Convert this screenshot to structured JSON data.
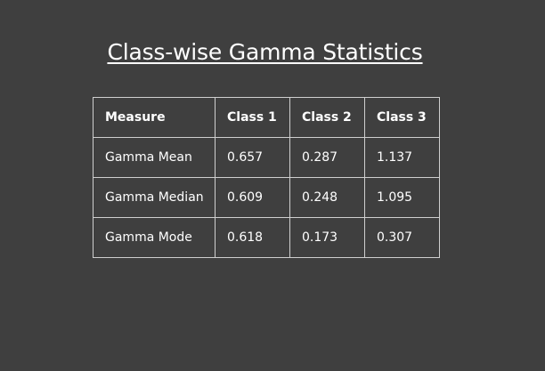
{
  "title": "Class-wise Gamma Statistics",
  "table": {
    "headers": [
      "Measure",
      "Class 1",
      "Class 2",
      "Class 3"
    ],
    "rows": [
      [
        "Gamma Mean",
        "0.657",
        "0.287",
        "1.137"
      ],
      [
        "Gamma Median",
        "0.609",
        "0.248",
        "1.095"
      ],
      [
        "Gamma Mode",
        "0.618",
        "0.173",
        "0.307"
      ]
    ]
  },
  "colors": {
    "background": "#3f3f3f",
    "text": "#ffffff",
    "border": "#cfcfcf"
  }
}
